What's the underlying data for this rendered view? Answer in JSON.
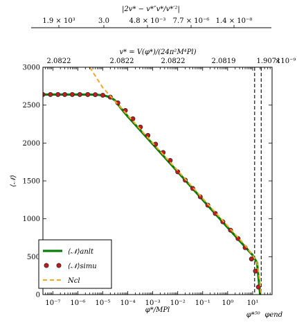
{
  "chart_data": {
    "type": "line",
    "xscale": "log",
    "xlim": [
      4e-08,
      60
    ],
    "ylim": [
      0,
      3000
    ],
    "xlabel": "φ*/MPl",
    "ylabel": "⟨𝒩⟩",
    "x_ticks": [
      {
        "value": 1e-07,
        "label": "10⁻⁷"
      },
      {
        "value": 1e-06,
        "label": "10⁻⁶"
      },
      {
        "value": 1e-05,
        "label": "10⁻⁵"
      },
      {
        "value": 0.0001,
        "label": "10⁻⁴"
      },
      {
        "value": 0.001,
        "label": "10⁻³"
      },
      {
        "value": 0.01,
        "label": "10⁻²"
      },
      {
        "value": 0.1,
        "label": "10⁻¹"
      },
      {
        "value": 1,
        "label": "10⁰"
      },
      {
        "value": 10,
        "label": "10¹"
      }
    ],
    "y_ticks": [
      {
        "value": 0,
        "label": "0"
      },
      {
        "value": 500,
        "label": "500"
      },
      {
        "value": 1000,
        "label": "1000"
      },
      {
        "value": 1500,
        "label": "1500"
      },
      {
        "value": 2000,
        "label": "2000"
      },
      {
        "value": 2500,
        "label": "2500"
      },
      {
        "value": 3000,
        "label": "3000"
      }
    ],
    "top_axis_1": {
      "label": "v* = V(φ*)/(24π²M⁴Pl)",
      "exponent": "×10⁻⁹",
      "ticks": [
        {
          "value": 1e-07,
          "label": "2.0822"
        },
        {
          "value": 3e-05,
          "label": "2.0822"
        },
        {
          "value": 0.009,
          "label": "2.0822"
        },
        {
          "value": 2.2,
          "label": "2.0819"
        },
        {
          "value": 600,
          "label": "1.9071"
        }
      ]
    },
    "top_axis_2": {
      "label": "|2v* − v*″v*/v*′²|",
      "ticks": [
        {
          "value": 1e-07,
          "label": "1.9 × 10³"
        },
        {
          "value": 3e-05,
          "label": "3.0"
        },
        {
          "value": 0.009,
          "label": "4.8 × 10⁻³"
        },
        {
          "value": 2.2,
          "label": "7.7 × 10⁻⁶"
        },
        {
          "value": 600,
          "label": "1.4 × 10⁻⁸"
        }
      ]
    },
    "vlines": [
      {
        "x": 12,
        "label": "φ*⁵⁰",
        "style": "dashed"
      },
      {
        "x": 22,
        "label": "φend",
        "style": "dashed"
      }
    ],
    "series": [
      {
        "name": "⟨𝒩⟩anlt",
        "kind": "line",
        "color": "#0a7d0a",
        "x": [
          4e-08,
          1e-07,
          1e-06,
          5e-06,
          1e-05,
          2e-05,
          3e-05,
          5e-05,
          0.0001,
          0.001,
          0.01,
          0.1,
          1,
          5,
          10,
          15,
          20
        ],
        "y": [
          2640,
          2640,
          2640,
          2638,
          2630,
          2605,
          2565,
          2470,
          2350,
          1985,
          1620,
          1250,
          885,
          630,
          520,
          420,
          0
        ]
      },
      {
        "name": "⟨𝒩⟩simu",
        "kind": "scatter",
        "color": "#c21b1b",
        "edge": "#2a2a2a",
        "x": [
          4e-08,
          8e-08,
          1.6e-07,
          3e-07,
          6e-07,
          1.2e-06,
          2.5e-06,
          5e-06,
          1e-05,
          2e-05,
          4e-05,
          8e-05,
          0.00016,
          0.00032,
          0.00064,
          0.0013,
          0.0026,
          0.005,
          0.01,
          0.02,
          0.04,
          0.08,
          0.16,
          0.32,
          0.64,
          1.3,
          2.6,
          5,
          9,
          13,
          17
        ],
        "y": [
          2640,
          2640,
          2640,
          2640,
          2640,
          2640,
          2640,
          2638,
          2630,
          2605,
          2530,
          2430,
          2320,
          2210,
          2100,
          1985,
          1875,
          1770,
          1620,
          1510,
          1400,
          1290,
          1180,
          1070,
          960,
          850,
          740,
          620,
          470,
          310,
          100
        ]
      },
      {
        "name": "Ncl",
        "kind": "line",
        "style": "dashed",
        "color": "#f5a623",
        "x": [
          3e-06,
          1e-05,
          0.0001,
          0.001,
          0.01,
          0.1,
          1,
          5,
          10,
          15,
          20,
          22
        ],
        "y": [
          3000,
          2730,
          2365,
          2000,
          1635,
          1270,
          905,
          650,
          520,
          420,
          150,
          0
        ]
      }
    ],
    "legend_position": "lower-left"
  }
}
